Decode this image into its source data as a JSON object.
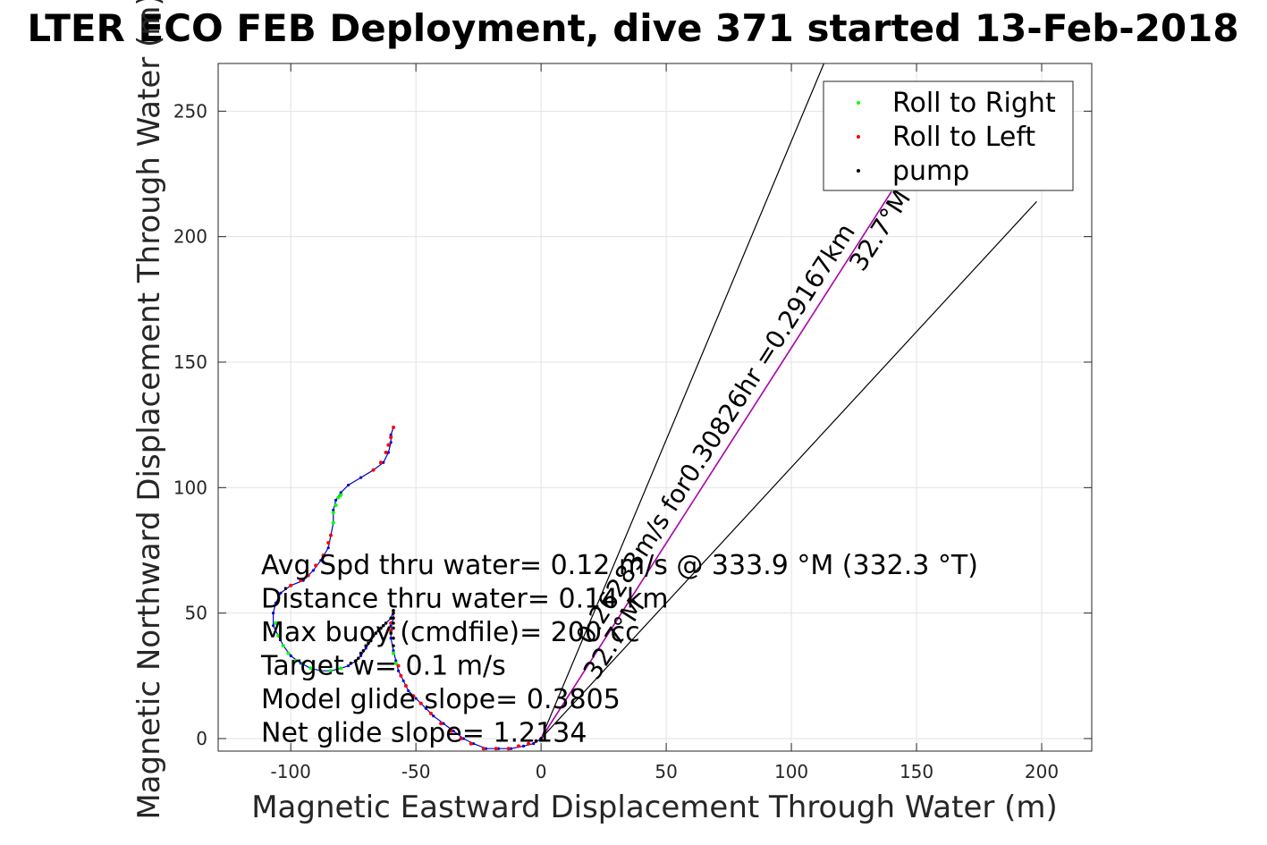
{
  "chart_data": {
    "type": "line",
    "title": "LTER ECO FEB Deployment, dive 371 started 13-Feb-2018",
    "xlabel": "Magnetic Eastward Displacement Through Water (m)",
    "ylabel": "Magnetic Northward Displacement Through Water (m)",
    "xlim": [
      -129,
      220
    ],
    "ylim": [
      -5,
      269
    ],
    "xticks": [
      -100,
      -50,
      0,
      50,
      100,
      150,
      200
    ],
    "yticks": [
      0,
      50,
      100,
      150,
      200,
      250
    ],
    "xtick_labels": [
      "-100",
      "-50",
      "0",
      "50",
      "100",
      "150",
      "200"
    ],
    "ytick_labels": [
      "0",
      "50",
      "100",
      "150",
      "200",
      "250"
    ],
    "grid": true,
    "legend": {
      "placement": "top-right",
      "entries": [
        {
          "label": "Roll to Right",
          "color": "#00ff00"
        },
        {
          "label": "Roll to Left",
          "color": "#ff0000"
        },
        {
          "label": "pump",
          "color": "#000000"
        }
      ]
    },
    "track": {
      "color": "#0000cc",
      "points": [
        [
          0,
          0
        ],
        [
          -3,
          -2
        ],
        [
          -7,
          -3
        ],
        [
          -12,
          -4
        ],
        [
          -17,
          -4
        ],
        [
          -22,
          -4
        ],
        [
          -27,
          -2
        ],
        [
          -31,
          0
        ],
        [
          -35,
          3
        ],
        [
          -39,
          6
        ],
        [
          -43,
          9
        ],
        [
          -46,
          12
        ],
        [
          -50,
          16
        ],
        [
          -53,
          19
        ],
        [
          -55,
          23
        ],
        [
          -57,
          27
        ],
        [
          -58,
          31
        ],
        [
          -59,
          35
        ],
        [
          -60,
          40
        ],
        [
          -60,
          45
        ],
        [
          -59,
          48
        ],
        [
          -59,
          51
        ],
        [
          -60,
          48
        ],
        [
          -63,
          45
        ],
        [
          -66,
          42
        ],
        [
          -68,
          39
        ],
        [
          -70,
          36
        ],
        [
          -72,
          33
        ],
        [
          -74,
          31
        ],
        [
          -77,
          29
        ],
        [
          -80,
          28
        ],
        [
          -84,
          27
        ],
        [
          -88,
          27
        ],
        [
          -92,
          28
        ],
        [
          -96,
          30
        ],
        [
          -100,
          33
        ],
        [
          -103,
          37
        ],
        [
          -105,
          41
        ],
        [
          -107,
          45
        ],
        [
          -107,
          50
        ],
        [
          -106,
          54
        ],
        [
          -104,
          58
        ],
        [
          -100,
          61
        ],
        [
          -95,
          63
        ],
        [
          -91,
          67
        ],
        [
          -88,
          71
        ],
        [
          -85,
          76
        ],
        [
          -84,
          81
        ],
        [
          -83,
          86
        ],
        [
          -83,
          91
        ],
        [
          -82,
          95
        ],
        [
          -80,
          98
        ],
        [
          -77,
          101
        ],
        [
          -72,
          104
        ],
        [
          -67,
          107
        ],
        [
          -63,
          110
        ],
        [
          -61,
          114
        ],
        [
          -60,
          118
        ],
        [
          -60,
          121
        ],
        [
          -59,
          124
        ]
      ]
    },
    "roll_right_points": [
      [
        -106,
        46
      ],
      [
        -105,
        41
      ],
      [
        -103,
        37
      ],
      [
        -101,
        34
      ],
      [
        -98,
        31
      ],
      [
        -95,
        30
      ],
      [
        -92,
        28
      ],
      [
        -88,
        27
      ],
      [
        -84,
        27
      ],
      [
        -80,
        28
      ],
      [
        -83,
        86
      ],
      [
        -83,
        90
      ],
      [
        -82,
        93
      ],
      [
        -81,
        96
      ],
      [
        -80,
        97
      ],
      [
        -58,
        30
      ],
      [
        -59,
        34
      ]
    ],
    "roll_left_points": [
      [
        -2,
        -1
      ],
      [
        -5,
        -2
      ],
      [
        -9,
        -3
      ],
      [
        -13,
        -4
      ],
      [
        -18,
        -4
      ],
      [
        -23,
        -4
      ],
      [
        -28,
        -2
      ],
      [
        -32,
        0
      ],
      [
        -36,
        3
      ],
      [
        -40,
        6
      ],
      [
        -44,
        10
      ],
      [
        -48,
        14
      ],
      [
        -51,
        17
      ],
      [
        -54,
        21
      ],
      [
        -56,
        25
      ],
      [
        -57,
        29
      ],
      [
        -60,
        43
      ],
      [
        -60,
        46
      ],
      [
        -100,
        61
      ],
      [
        -96,
        63
      ],
      [
        -93,
        65
      ],
      [
        -90,
        69
      ],
      [
        -87,
        73
      ],
      [
        -85,
        78
      ],
      [
        -84,
        81
      ],
      [
        -67,
        107
      ],
      [
        -64,
        110
      ],
      [
        -62,
        114
      ],
      [
        -61,
        117
      ],
      [
        -60,
        120
      ],
      [
        -59,
        124
      ]
    ],
    "pump_points": [
      [
        -59,
        37
      ],
      [
        -59,
        40
      ],
      [
        -60,
        42
      ],
      [
        -59,
        44
      ],
      [
        -59,
        46
      ],
      [
        -59,
        48
      ],
      [
        -59,
        50
      ],
      [
        -59,
        51
      ],
      [
        -60,
        48
      ],
      [
        -62,
        46
      ],
      [
        -63,
        45
      ],
      [
        -64,
        44
      ],
      [
        -65,
        43
      ],
      [
        -66,
        42
      ],
      [
        -67,
        41
      ],
      [
        -68,
        39
      ],
      [
        -69,
        38
      ],
      [
        -70,
        37
      ],
      [
        -71,
        35
      ],
      [
        -72,
        34
      ],
      [
        -73,
        32
      ],
      [
        -74,
        31
      ],
      [
        -76,
        30
      ],
      [
        -2,
        -1
      ],
      [
        0,
        0
      ]
    ],
    "heading_lines": {
      "origin": [
        0,
        0
      ],
      "center_end": [
        140,
        218
      ],
      "left_end": [
        113,
        269
      ],
      "right_end": [
        198,
        214
      ],
      "center_color": "#aa00aa",
      "bound_color": "#000000"
    },
    "annotations": {
      "center_label": "0.26283m/s for0.30826hr =0.29167km",
      "center_heading": "32.7°M",
      "near_origin_heading": "32.7°M",
      "stats": [
        "Avg Spd thru water=  0.12 m/s @ 333.9 °M (332.3 °T)",
        "Distance thru water=  0.14 km",
        "Max buoy (cmdfile)= 200 cc",
        "Target w= 0.1 m/s",
        "Model glide slope= 0.3805",
        "Net glide slope= 1.2134"
      ]
    }
  }
}
